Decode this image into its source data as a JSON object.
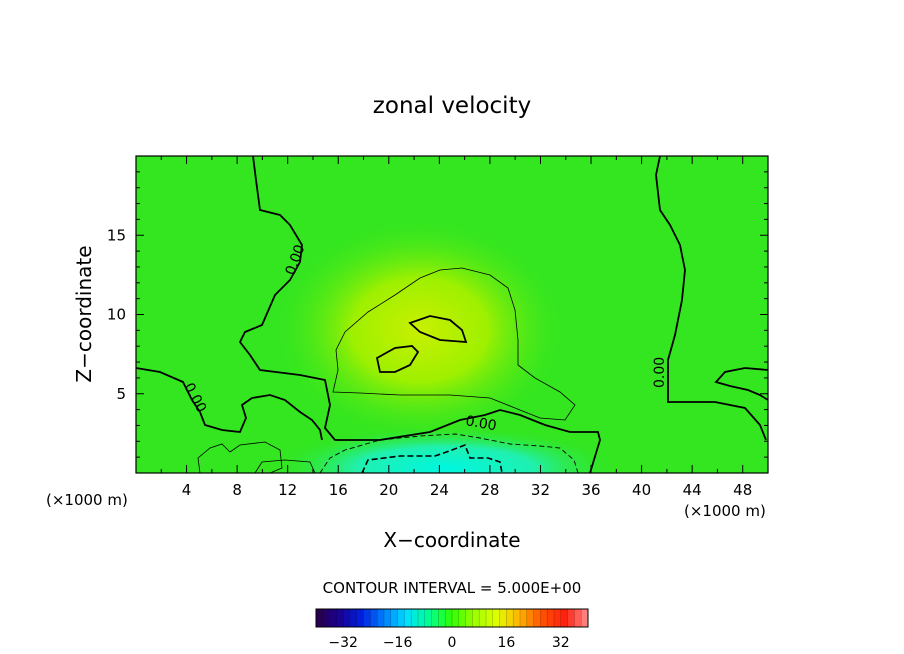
{
  "chart_data": {
    "type": "heatmap",
    "title": "zonal velocity",
    "xlabel": "X−coordinate",
    "ylabel": "Z−coordinate",
    "x_unit_left": "(×1000 m)",
    "x_unit_right": "(×1000 m)",
    "xlim": [
      0,
      50
    ],
    "ylim": [
      0,
      20
    ],
    "x_ticks": [
      4,
      8,
      12,
      16,
      20,
      24,
      28,
      32,
      36,
      40,
      44,
      48
    ],
    "y_ticks": [
      5,
      10,
      15
    ],
    "contour_interval_label": "CONTOUR INTERVAL = 5.000E+00",
    "contour_label": "0.00",
    "colorbar": {
      "range": [
        -40,
        40
      ],
      "ticks": [
        -32,
        -16,
        0,
        16,
        32
      ],
      "tick_labels": [
        "−32",
        "−16",
        "0",
        "16",
        "32"
      ],
      "colors": [
        "#2a0048",
        "#1a0090",
        "#0020e0",
        "#0080ff",
        "#00e0ff",
        "#00ff90",
        "#30ff00",
        "#a0ff00",
        "#e0ff00",
        "#ffb000",
        "#ff5000",
        "#ff2010",
        "#ff9090"
      ]
    },
    "field_summary": {
      "background_value": 0,
      "positive_core": {
        "x_center": 24,
        "z_center": 8.5,
        "max_value": 10
      },
      "negative_core": {
        "x_center": 24,
        "z_center": 0.5,
        "min_value": -15
      }
    },
    "colors": {
      "background": "#33e620",
      "positive_core": "#c8f000",
      "negative_core": "#00f0d8"
    }
  }
}
